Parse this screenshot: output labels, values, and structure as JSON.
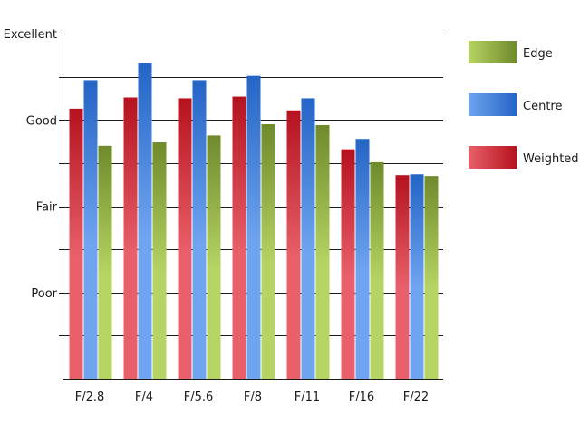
{
  "chart_data": {
    "type": "bar",
    "title": "",
    "xlabel": "",
    "ylabel": "",
    "categories": [
      "F/2.8",
      "F/4",
      "F/5.6",
      "F/8",
      "F/11",
      "F/16",
      "F/22"
    ],
    "y_ticks": [
      {
        "value": 1,
        "label": "Poor"
      },
      {
        "value": 2,
        "label": "Fair"
      },
      {
        "value": 3,
        "label": "Good"
      },
      {
        "value": 4,
        "label": "Excellent"
      }
    ],
    "ylim": [
      0,
      4
    ],
    "grid": true,
    "legend": "right",
    "series": [
      {
        "name": "Weighted",
        "color_light": "#e8606a",
        "color_dark": "#b5121e",
        "values": [
          3.13,
          3.26,
          3.25,
          3.27,
          3.11,
          2.66,
          2.36
        ]
      },
      {
        "name": "Centre",
        "color_light": "#6fa4f0",
        "color_dark": "#2464c6",
        "values": [
          3.46,
          3.66,
          3.46,
          3.51,
          3.25,
          2.78,
          2.37
        ]
      },
      {
        "name": "Edge",
        "color_light": "#b6d463",
        "color_dark": "#6f8a2b",
        "values": [
          2.7,
          2.74,
          2.82,
          2.95,
          2.94,
          2.51,
          2.35
        ]
      }
    ],
    "legend_order": [
      "Edge",
      "Centre",
      "Weighted"
    ]
  }
}
